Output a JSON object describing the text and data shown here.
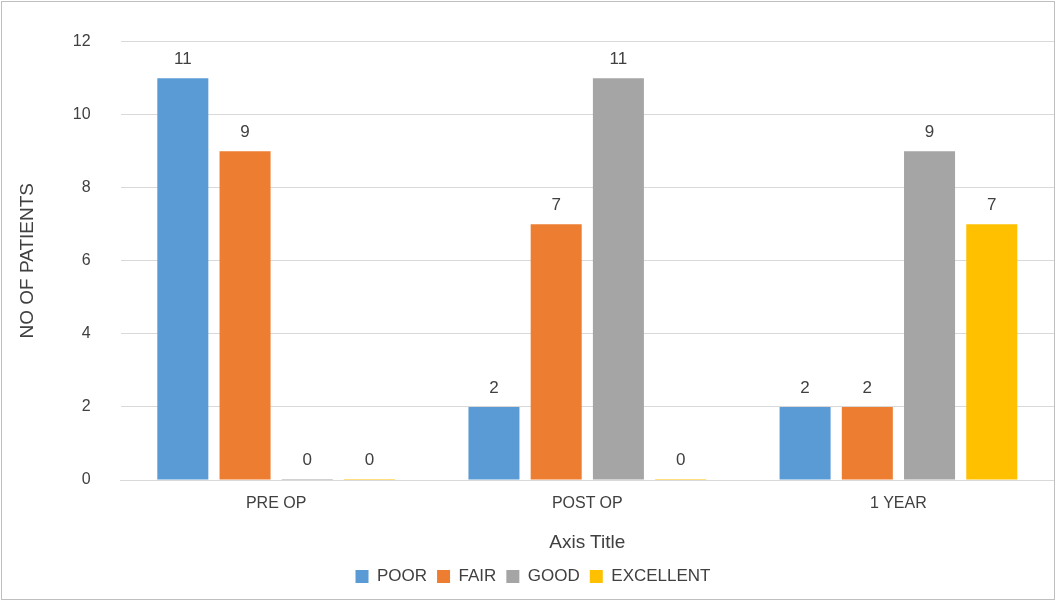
{
  "chart_data": {
    "type": "bar",
    "xlabel": "Axis Title",
    "ylabel": "NO OF PATIENTS",
    "categories": [
      "PRE OP",
      "POST OP",
      "1 YEAR"
    ],
    "series": [
      {
        "name": "POOR",
        "color": "#5b9bd5",
        "values": [
          11,
          2,
          2
        ]
      },
      {
        "name": "FAIR",
        "color": "#ed7d31",
        "values": [
          9,
          7,
          2
        ]
      },
      {
        "name": "GOOD",
        "color": "#a5a5a5",
        "values": [
          0,
          11,
          9
        ]
      },
      {
        "name": "EXCELLENT",
        "color": "#ffc000",
        "values": [
          0,
          0,
          7
        ]
      }
    ],
    "ylim": [
      0,
      12
    ],
    "yticks": [
      0,
      2,
      4,
      6,
      8,
      10,
      12
    ],
    "grid": "y",
    "legend": "bottom",
    "data_labels": true
  }
}
